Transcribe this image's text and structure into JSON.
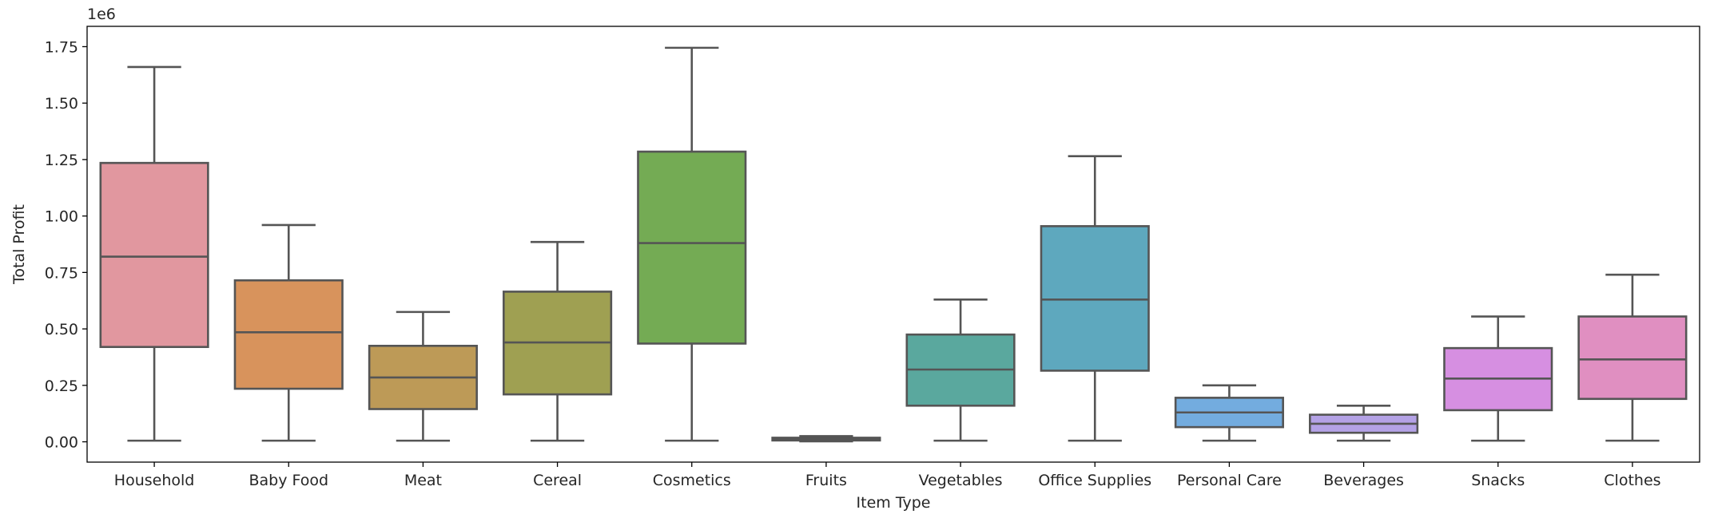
{
  "chart_data": {
    "type": "box",
    "title": "",
    "xlabel": "Item Type",
    "ylabel": "Total Profit",
    "y_offset_label": "1e6",
    "ylim": [
      -0.09,
      1.84
    ],
    "y_scale": 1000000,
    "yticks": [
      0.0,
      0.25,
      0.5,
      0.75,
      1.0,
      1.25,
      1.5,
      1.75
    ],
    "ytick_labels": [
      "0.00",
      "0.25",
      "0.50",
      "0.75",
      "1.00",
      "1.25",
      "1.50",
      "1.75"
    ],
    "grid": false,
    "legend": "none",
    "categories": [
      "Household",
      "Baby Food",
      "Meat",
      "Cereal",
      "Cosmetics",
      "Fruits",
      "Vegetables",
      "Office Supplies",
      "Personal Care",
      "Beverages",
      "Snacks",
      "Clothes"
    ],
    "boxes": [
      {
        "category": "Household",
        "whisker_low": 0.005,
        "q1": 0.42,
        "median": 0.82,
        "q3": 1.235,
        "whisker_high": 1.66,
        "color": "#e1979f"
      },
      {
        "category": "Baby Food",
        "whisker_low": 0.005,
        "q1": 0.235,
        "median": 0.485,
        "q3": 0.715,
        "whisker_high": 0.96,
        "color": "#d8935c"
      },
      {
        "category": "Meat",
        "whisker_low": 0.005,
        "q1": 0.145,
        "median": 0.285,
        "q3": 0.425,
        "whisker_high": 0.575,
        "color": "#bd9a57"
      },
      {
        "category": "Cereal",
        "whisker_low": 0.005,
        "q1": 0.21,
        "median": 0.44,
        "q3": 0.665,
        "whisker_high": 0.885,
        "color": "#9fa052"
      },
      {
        "category": "Cosmetics",
        "whisker_low": 0.005,
        "q1": 0.435,
        "median": 0.88,
        "q3": 1.285,
        "whisker_high": 1.745,
        "color": "#74ab54"
      },
      {
        "category": "Fruits",
        "whisker_low": 0.002,
        "q1": 0.006,
        "median": 0.012,
        "q3": 0.018,
        "whisker_high": 0.025,
        "color": "#5ab08a"
      },
      {
        "category": "Vegetables",
        "whisker_low": 0.005,
        "q1": 0.16,
        "median": 0.32,
        "q3": 0.475,
        "whisker_high": 0.63,
        "color": "#5aa89e"
      },
      {
        "category": "Office Supplies",
        "whisker_low": 0.005,
        "q1": 0.315,
        "median": 0.63,
        "q3": 0.955,
        "whisker_high": 1.265,
        "color": "#5ea8be"
      },
      {
        "category": "Personal Care",
        "whisker_low": 0.005,
        "q1": 0.065,
        "median": 0.13,
        "q3": 0.195,
        "whisker_high": 0.25,
        "color": "#73acdf"
      },
      {
        "category": "Beverages",
        "whisker_low": 0.005,
        "q1": 0.04,
        "median": 0.08,
        "q3": 0.12,
        "whisker_high": 0.16,
        "color": "#b4a2e6"
      },
      {
        "category": "Snacks",
        "whisker_low": 0.005,
        "q1": 0.14,
        "median": 0.28,
        "q3": 0.415,
        "whisker_high": 0.555,
        "color": "#d68fe1"
      },
      {
        "category": "Clothes",
        "whisker_low": 0.005,
        "q1": 0.19,
        "median": 0.365,
        "q3": 0.555,
        "whisker_high": 0.74,
        "color": "#e08fc1"
      }
    ],
    "line_color": "#555555"
  }
}
